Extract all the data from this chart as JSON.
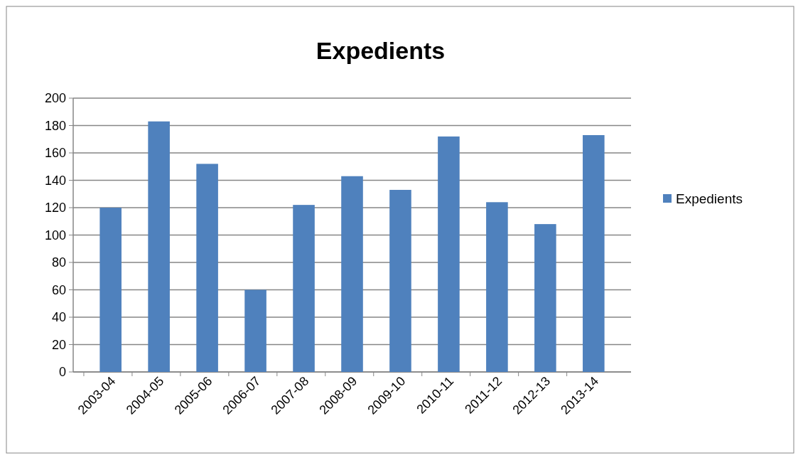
{
  "chart_data": {
    "type": "bar",
    "title": "Expedients",
    "categories": [
      "2003-04",
      "2004-05",
      "2005-06",
      "2006-07",
      "2007-08",
      "2008-09",
      "2009-10",
      "2010-11",
      "2011-12",
      "2012-13",
      "2013-14"
    ],
    "series": [
      {
        "name": "Expedients",
        "color": "#4f81bd",
        "values": [
          120,
          183,
          152,
          60,
          122,
          143,
          133,
          172,
          124,
          108,
          173
        ]
      }
    ],
    "ylim": [
      0,
      200
    ],
    "yticks": [
      0,
      20,
      40,
      60,
      80,
      100,
      120,
      140,
      160,
      180,
      200
    ],
    "grid": "y",
    "legend": "right"
  }
}
